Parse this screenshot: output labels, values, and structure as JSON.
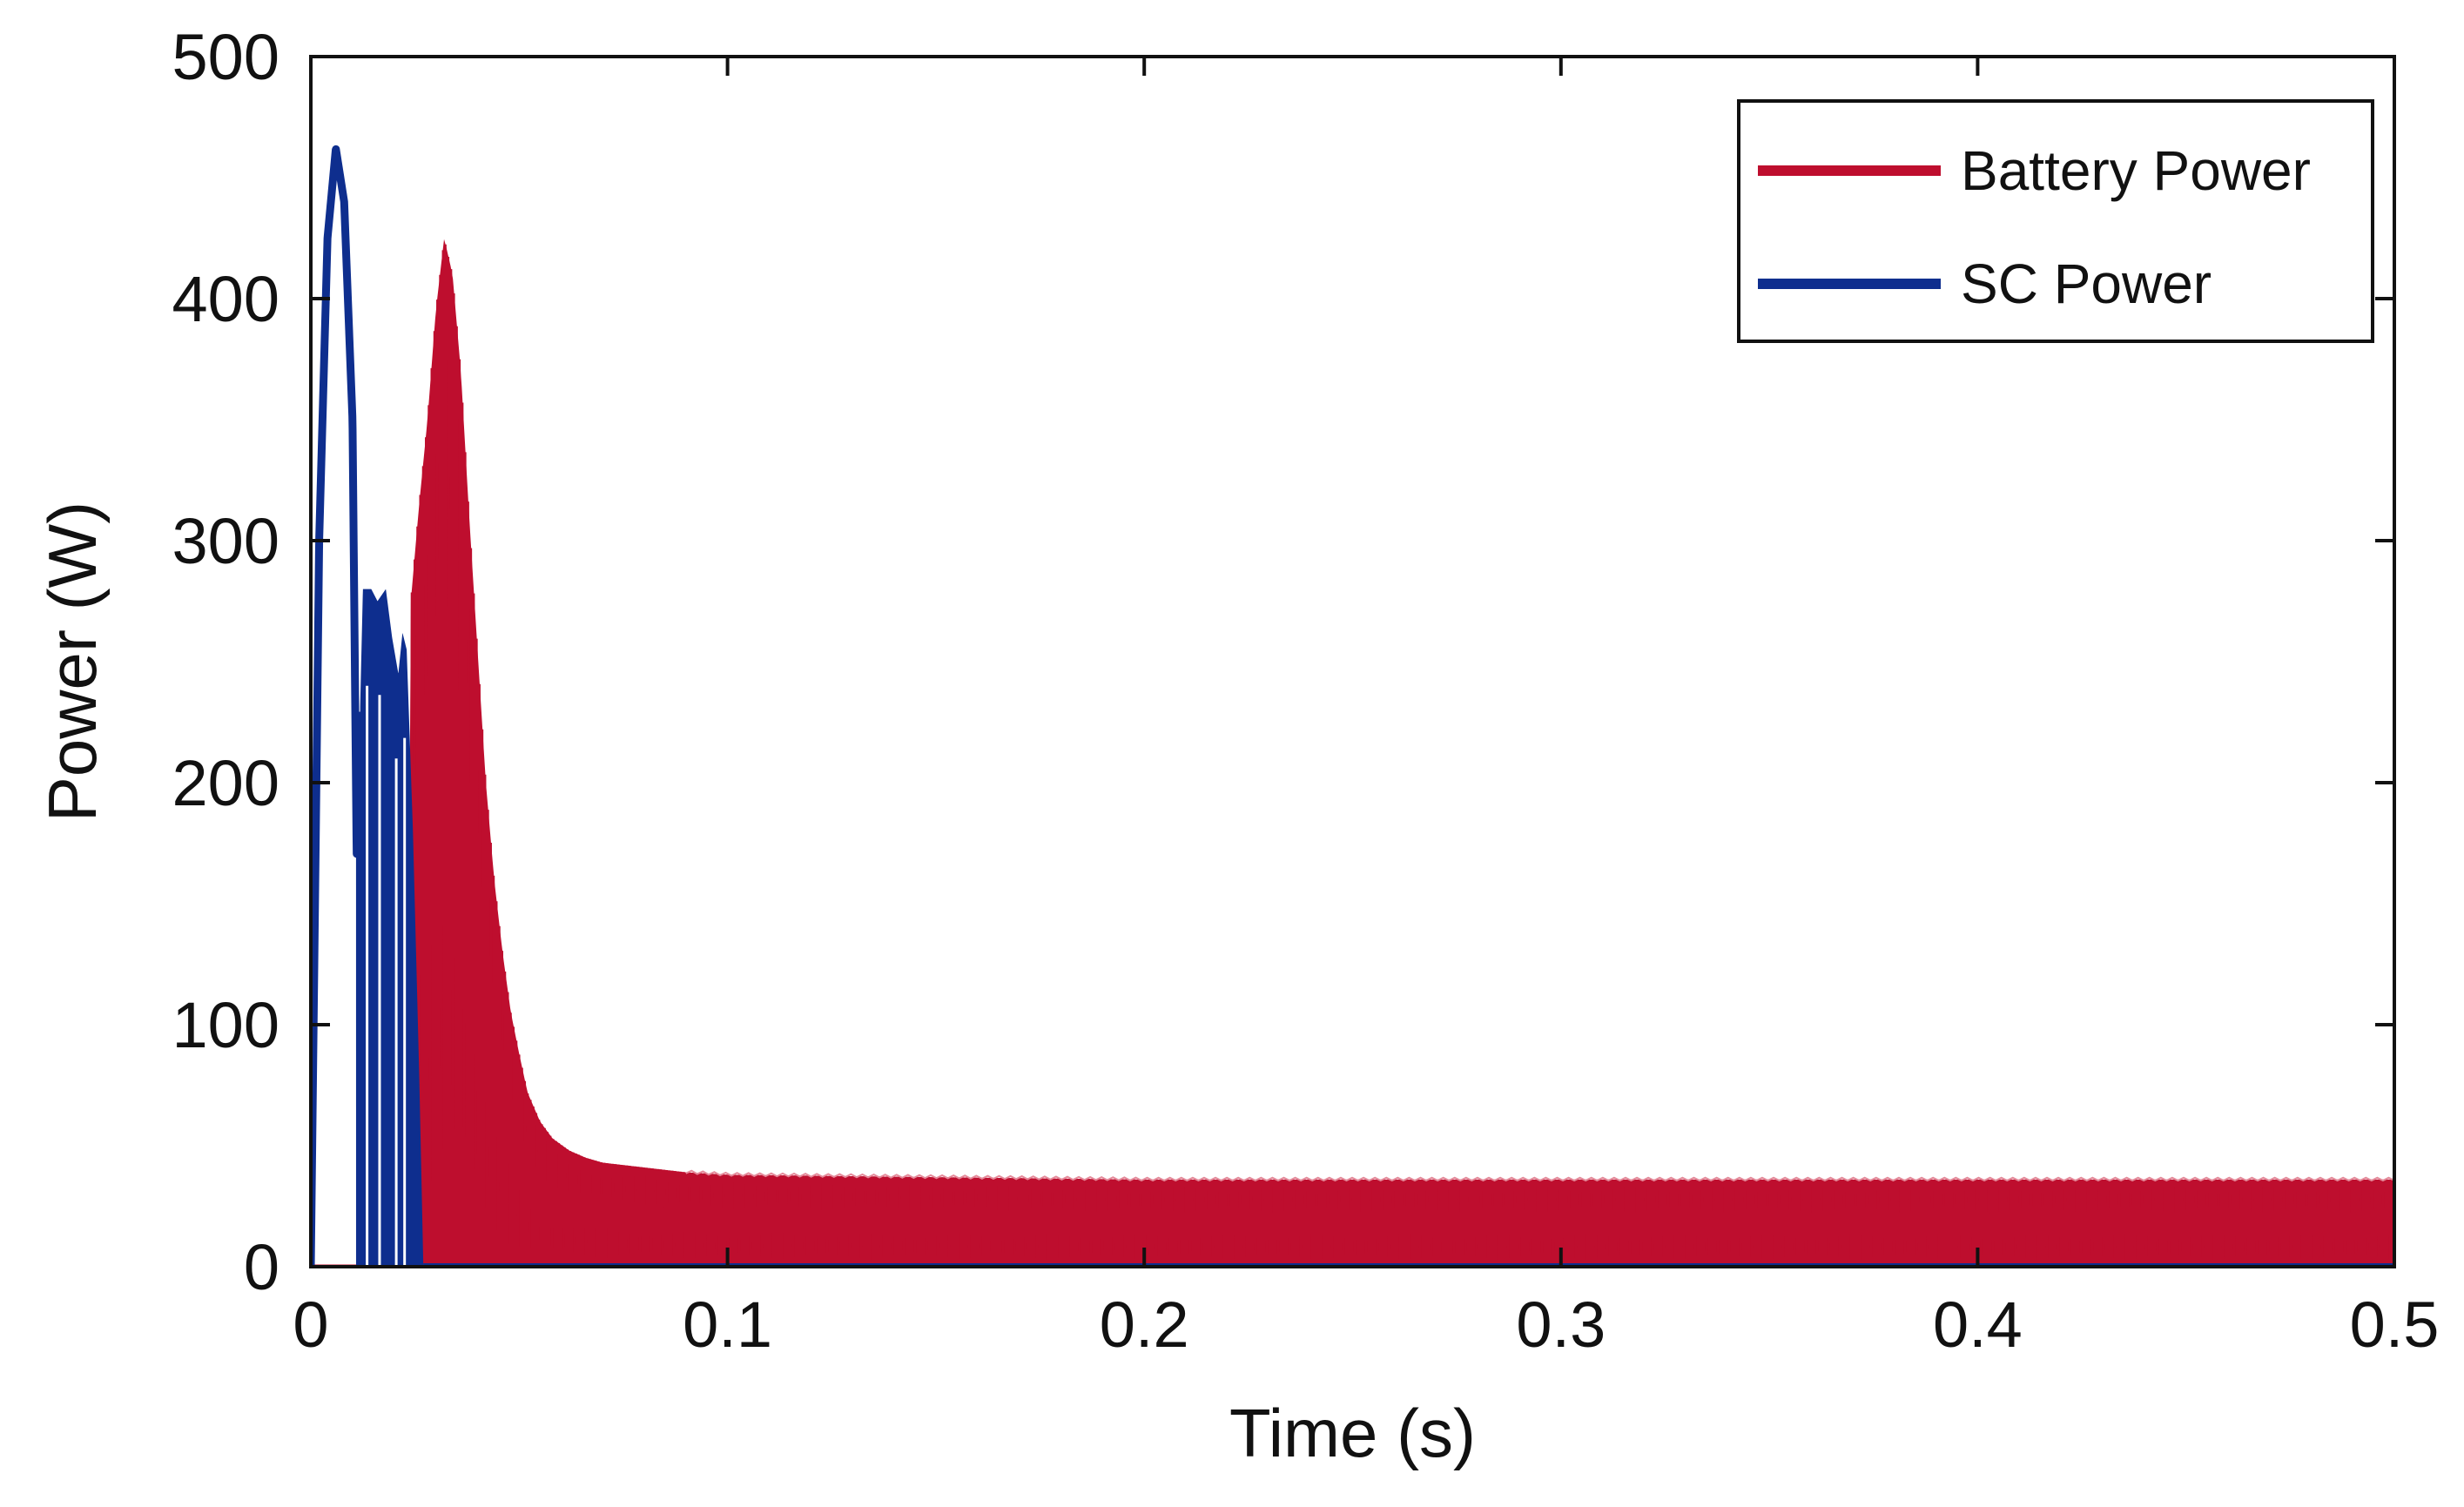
{
  "chart_data": {
    "type": "line",
    "title": "",
    "xlabel": "Time (s)",
    "ylabel": "Power (W)",
    "xlim": [
      0,
      0.5
    ],
    "ylim": [
      0,
      500
    ],
    "x_ticks": [
      0,
      0.1,
      0.2,
      0.3,
      0.4,
      0.5
    ],
    "x_tick_labels": [
      "0",
      "0.1",
      "0.2",
      "0.3",
      "0.4",
      "0.5"
    ],
    "y_ticks": [
      0,
      100,
      200,
      300,
      400,
      500
    ],
    "y_tick_labels": [
      "0",
      "100",
      "200",
      "300",
      "400",
      "500"
    ],
    "grid": false,
    "legend_position": "top-right",
    "series": [
      {
        "name": "Battery Power",
        "color": "#BE0E2E",
        "style": "rapidly oscillating between 0 and the envelope",
        "envelope": {
          "x": [
            0,
            0.023,
            0.024,
            0.026,
            0.028,
            0.03,
            0.032,
            0.034,
            0.036,
            0.038,
            0.04,
            0.042,
            0.044,
            0.046,
            0.048,
            0.05,
            0.052,
            0.055,
            0.058,
            0.062,
            0.066,
            0.07,
            0.075,
            0.08,
            0.085,
            0.09,
            0.1,
            0.15,
            0.2,
            0.3,
            0.4,
            0.5
          ],
          "y": [
            0,
            0,
            275,
            315,
            350,
            395,
            425,
            410,
            370,
            310,
            255,
            200,
            160,
            130,
            105,
            88,
            72,
            60,
            53,
            48,
            45,
            43,
            42,
            41,
            40,
            39,
            38,
            37,
            36,
            36,
            36,
            36
          ]
        }
      },
      {
        "name": "SC Power",
        "color": "#0E2E8E",
        "style": "rapidly oscillating between 0 and the envelope",
        "envelope": {
          "x": [
            0,
            0.002,
            0.004,
            0.006,
            0.008,
            0.01,
            0.011,
            0.0125,
            0.0145,
            0.016,
            0.018,
            0.0195,
            0.021,
            0.022,
            0.023,
            0.0245,
            0.026,
            0.027
          ],
          "y": [
            0,
            300,
            425,
            462,
            440,
            350,
            170,
            280,
            280,
            275,
            280,
            260,
            245,
            262,
            255,
            180,
            80,
            0
          ]
        },
        "baseline_after": 0
      }
    ]
  }
}
